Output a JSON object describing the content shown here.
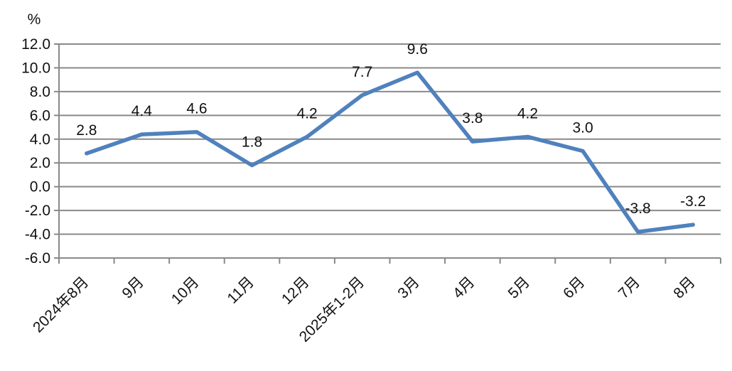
{
  "chart_data": {
    "type": "line",
    "title": "",
    "xlabel": "",
    "ylabel": "%",
    "categories": [
      "2024年8月",
      "9月",
      "10月",
      "11月",
      "12月",
      "2025年1-2月",
      "3月",
      "4月",
      "5月",
      "6月",
      "7月",
      "8月"
    ],
    "values": [
      2.8,
      4.4,
      4.6,
      1.8,
      4.2,
      7.7,
      9.6,
      3.8,
      4.2,
      3.0,
      -3.8,
      -3.2
    ],
    "data_labels": [
      "2.8",
      "4.4",
      "4.6",
      "1.8",
      "4.2",
      "7.7",
      "9.6",
      "3.8",
      "4.2",
      "3.0",
      "-3.8",
      "-3.2"
    ],
    "ylim": [
      -6,
      12
    ],
    "ytick_step": 2,
    "ytick_labels": [
      "12.0",
      "10.0",
      "8.0",
      "6.0",
      "4.0",
      "2.0",
      "0.0",
      "-2.0",
      "-4.0",
      "-6.0"
    ],
    "grid": true,
    "legend": "none",
    "line_color": "#4F81BD",
    "grid_color": "#898989",
    "axis_color": "#898989",
    "text_color": "#111111"
  }
}
